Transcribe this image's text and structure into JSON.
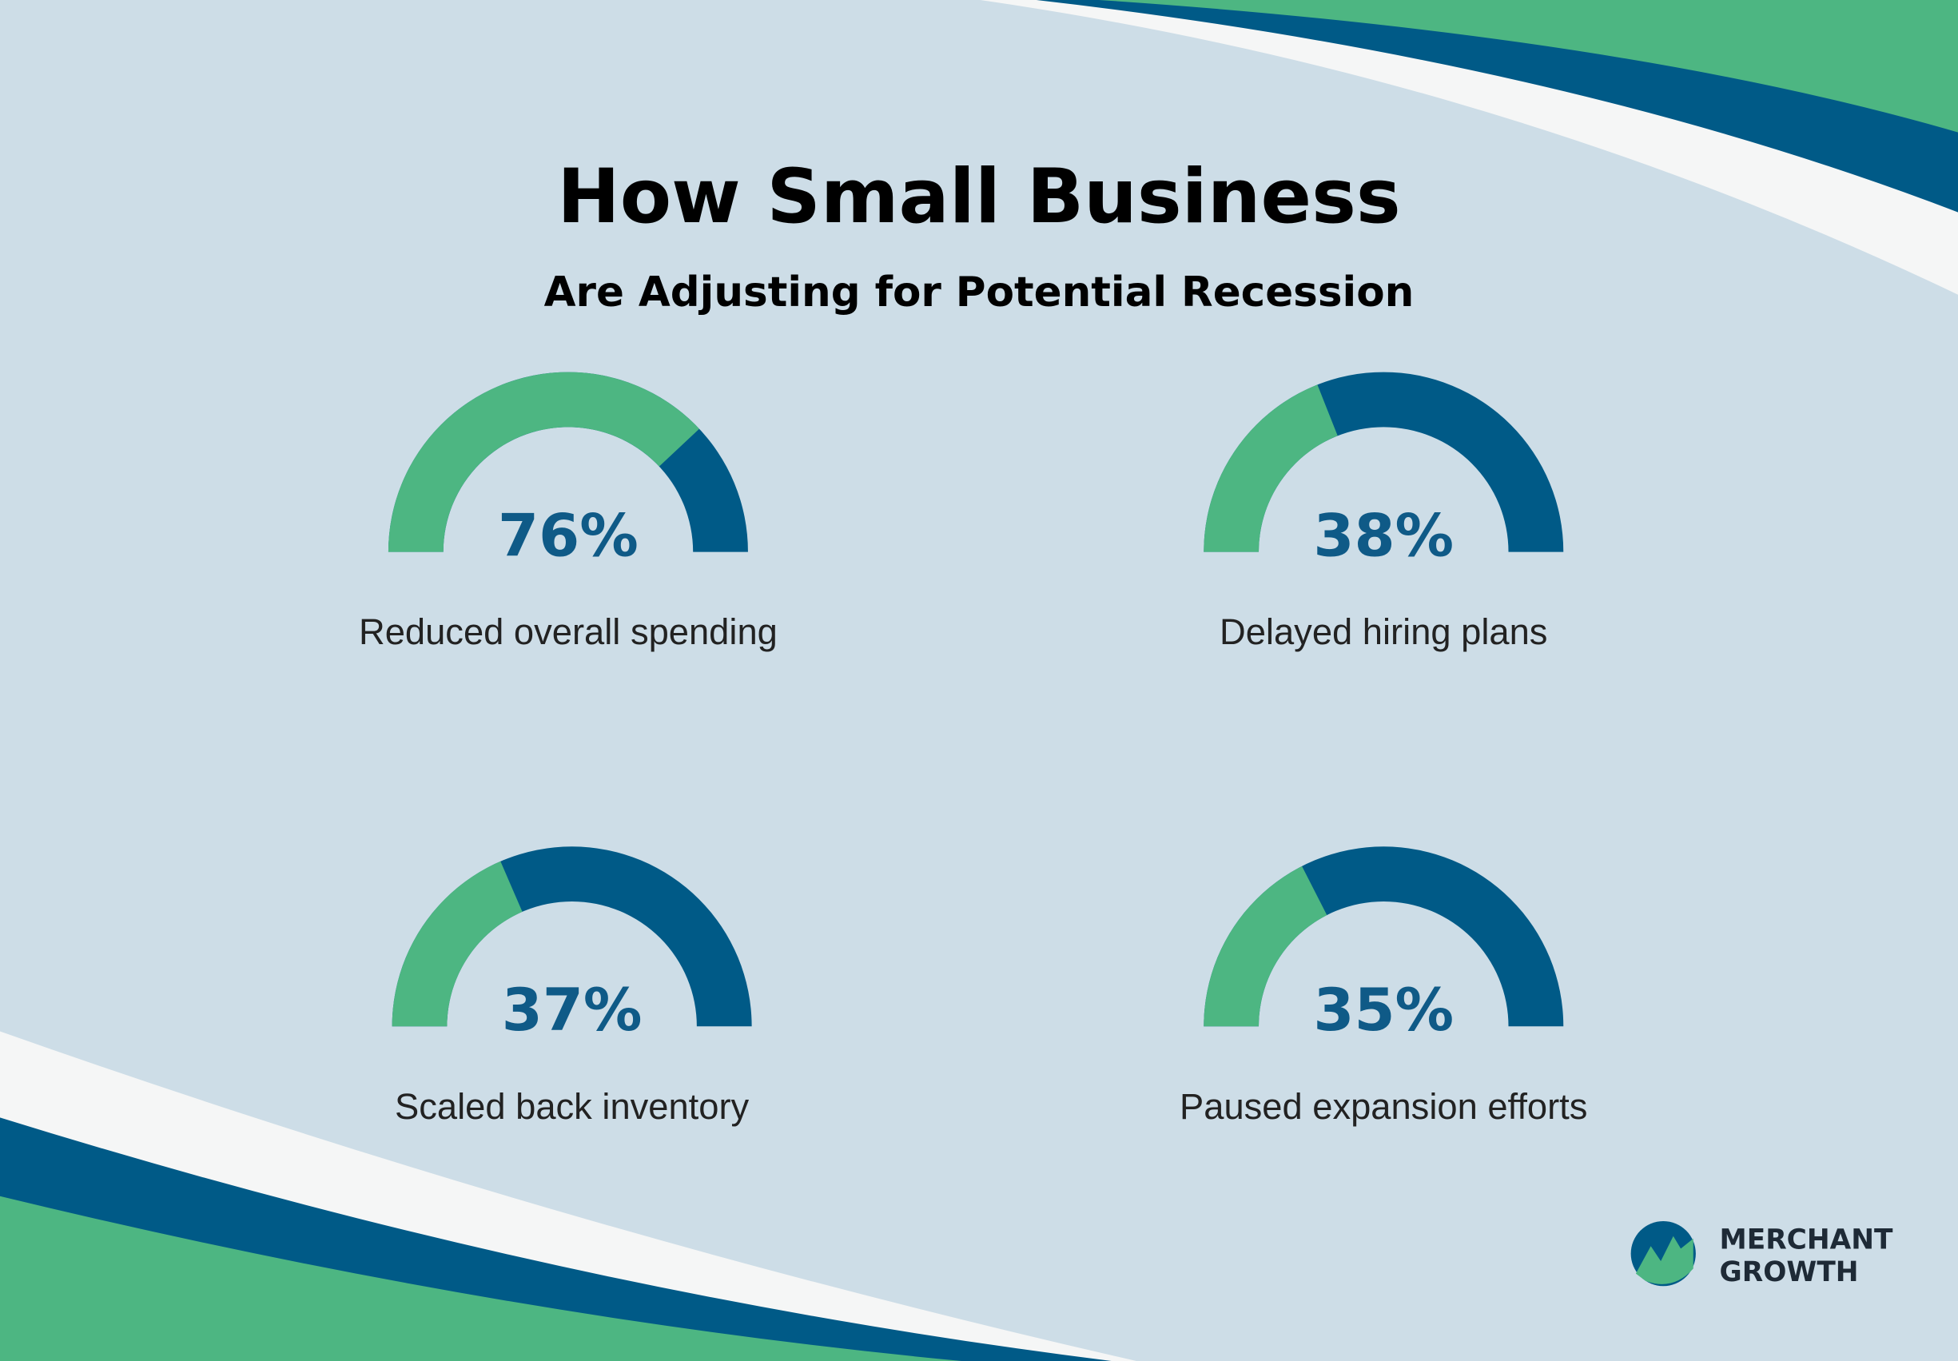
{
  "header": {
    "title": "How Small Business",
    "subtitle": "Are Adjusting for Potential Recession"
  },
  "chart_data": [
    {
      "type": "gauge",
      "title": "Reduced overall spending",
      "values": [
        76
      ],
      "value_labels": [
        "76%"
      ],
      "ylim": [
        0,
        100
      ],
      "color": "#4db682",
      "track_color": "#005a87"
    },
    {
      "type": "gauge",
      "title": "Delayed hiring plans",
      "values": [
        38
      ],
      "value_labels": [
        "38%"
      ],
      "ylim": [
        0,
        100
      ],
      "color": "#4db682",
      "track_color": "#005a87"
    },
    {
      "type": "gauge",
      "title": "Scaled back inventory",
      "values": [
        37
      ],
      "value_labels": [
        "37%"
      ],
      "ylim": [
        0,
        100
      ],
      "color": "#4db682",
      "track_color": "#005a87"
    },
    {
      "type": "gauge",
      "title": "Paused expansion efforts",
      "values": [
        35
      ],
      "value_labels": [
        "35%"
      ],
      "ylim": [
        0,
        100
      ],
      "color": "#4db682",
      "track_color": "#005a87"
    }
  ],
  "logo": {
    "lines": [
      "MERCHANT",
      "GROWTH"
    ]
  }
}
